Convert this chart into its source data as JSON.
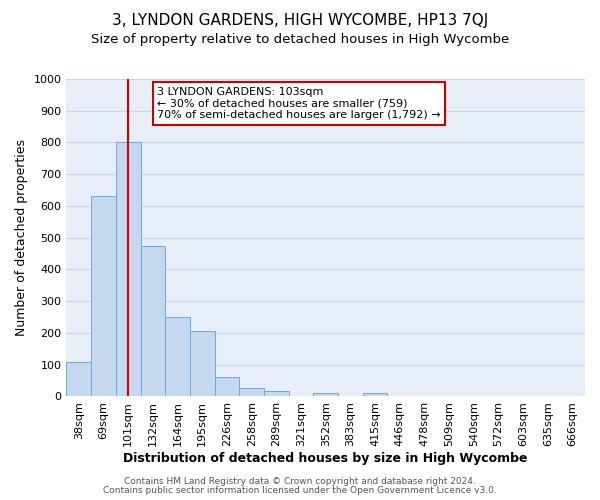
{
  "title": "3, LYNDON GARDENS, HIGH WYCOMBE, HP13 7QJ",
  "subtitle": "Size of property relative to detached houses in High Wycombe",
  "xlabel": "Distribution of detached houses by size in High Wycombe",
  "ylabel": "Number of detached properties",
  "bin_labels": [
    "38sqm",
    "69sqm",
    "101sqm",
    "132sqm",
    "164sqm",
    "195sqm",
    "226sqm",
    "258sqm",
    "289sqm",
    "321sqm",
    "352sqm",
    "383sqm",
    "415sqm",
    "446sqm",
    "478sqm",
    "509sqm",
    "540sqm",
    "572sqm",
    "603sqm",
    "635sqm",
    "666sqm"
  ],
  "bar_values": [
    110,
    630,
    800,
    475,
    250,
    205,
    60,
    28,
    18,
    0,
    12,
    0,
    10,
    0,
    0,
    0,
    0,
    0,
    0,
    0,
    0
  ],
  "bar_color": "#c5d8ef",
  "bar_edge_color": "#6aacd6",
  "vline_bin_index": 2,
  "vline_color": "#cc0000",
  "ylim": [
    0,
    1000
  ],
  "yticks": [
    0,
    100,
    200,
    300,
    400,
    500,
    600,
    700,
    800,
    900,
    1000
  ],
  "annotation_box_title": "3 LYNDON GARDENS: 103sqm",
  "annotation_line1": "← 30% of detached houses are smaller (759)",
  "annotation_line2": "70% of semi-detached houses are larger (1,792) →",
  "annotation_box_color": "#cc0000",
  "footer_line1": "Contains HM Land Registry data © Crown copyright and database right 2024.",
  "footer_line2": "Contains public sector information licensed under the Open Government Licence v3.0.",
  "bg_color": "#e8eef8",
  "grid_color": "#c8d4e8",
  "title_fontsize": 11,
  "subtitle_fontsize": 9.5,
  "ylabel_fontsize": 9,
  "xlabel_fontsize": 9,
  "tick_fontsize": 8,
  "ann_fontsize": 8
}
